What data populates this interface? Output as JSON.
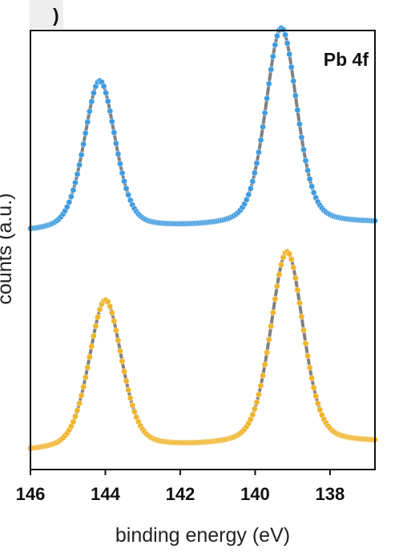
{
  "chart_data": {
    "type": "scatter",
    "title": "Pb 4f",
    "panel_letter": ")",
    "xlabel": "binding energy (eV)",
    "ylabel": "counts (a.u.)",
    "x_reversed": true,
    "xlim": [
      146,
      136.8
    ],
    "ylim": [
      0,
      1
    ],
    "xticks": [
      "146",
      "144",
      "142",
      "140",
      "138"
    ],
    "yticks_shown": false,
    "grid": false,
    "legend": "none",
    "series": [
      {
        "color": "#3f9be0",
        "fit_color": "#808080",
        "baseline": 0.56,
        "background_slope": -0.02,
        "peaks": [
          {
            "center": 144.15,
            "height": 0.34,
            "width": 0.42
          },
          {
            "center": 139.3,
            "height": 0.45,
            "width": 0.42
          }
        ],
        "x_start": 146,
        "x_end": 136.8,
        "n_points": 170
      },
      {
        "color": "#f0b429",
        "fit_color": "#808080",
        "baseline": 0.06,
        "background_slope": -0.02,
        "peaks": [
          {
            "center": 144.0,
            "height": 0.34,
            "width": 0.44
          },
          {
            "center": 139.15,
            "height": 0.44,
            "width": 0.44
          }
        ],
        "x_start": 146,
        "x_end": 136.8,
        "n_points": 170
      }
    ]
  },
  "colors": {
    "axis": "#111111",
    "label_box": "#eeeeee"
  }
}
